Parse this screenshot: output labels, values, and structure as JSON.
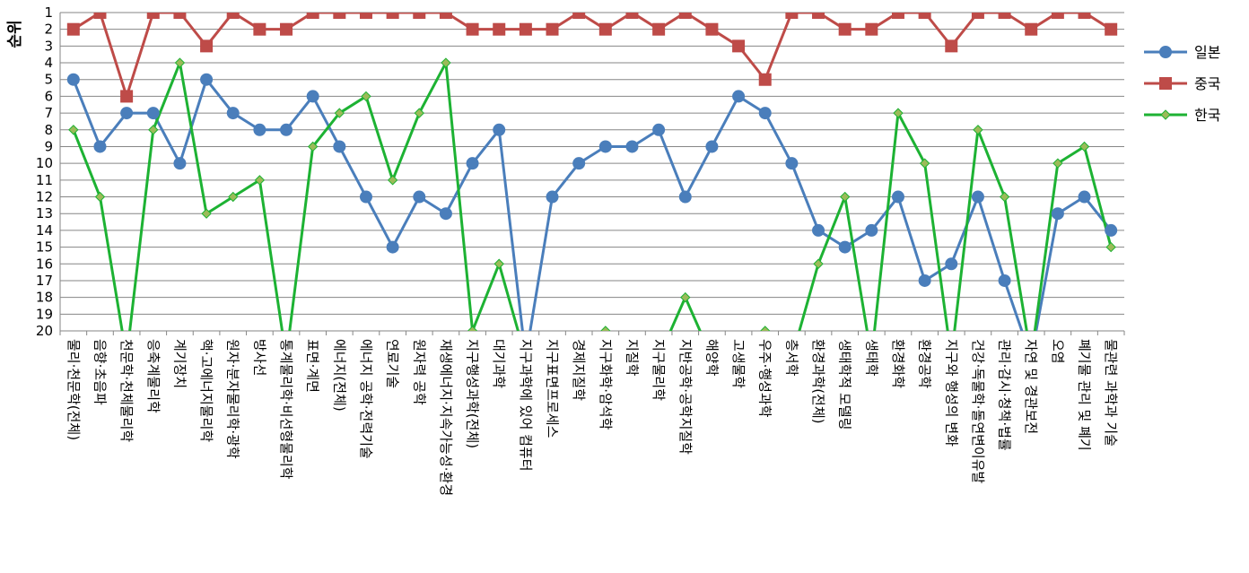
{
  "chart_data": {
    "type": "line",
    "ylabel": "순위",
    "ylim": [
      1,
      20
    ],
    "y_inverted": true,
    "grid": true,
    "legend_position": "right",
    "categories": [
      "물리·천문학(전체)",
      "음향·초음파",
      "천문학·천체물리학",
      "응축계물리학",
      "계기장치",
      "핵·고에너지물리학",
      "원자·분자물리학·광학",
      "방사선",
      "통계물리학·비선형물리학",
      "표면·계면",
      "에너지(전체)",
      "에너지 공학·전력기술",
      "연료기술",
      "원자력 공학",
      "재생에너지·지속가능성·환경",
      "지구행성과학(전체)",
      "대기과학",
      "지구과학에 있어 컴퓨터",
      "지구표면프로세스",
      "경제지질학",
      "지구화학·암석학",
      "지질학",
      "지구물리학",
      "지반공학·공학지질학",
      "해양학",
      "고생물학",
      "우주·행성과학",
      "층서학",
      "환경과학(전체)",
      "생태학적 모델링",
      "생태학",
      "환경화학",
      "환경공학",
      "지구와 행성의 변화",
      "건강·독물학·돌연변이유발",
      "관리·감시·청책·법률",
      "자연 및 경관보전",
      "오염",
      "폐기물 관리 및 폐기",
      "물관련 과학과 기술"
    ],
    "series": [
      {
        "name": "일본",
        "color": "#4A7EBB",
        "marker": "circle",
        "values": [
          5,
          9,
          7,
          7,
          10,
          5,
          7,
          8,
          8,
          6,
          9,
          12,
          15,
          12,
          13,
          10,
          8,
          null,
          12,
          10,
          9,
          9,
          8,
          12,
          9,
          6,
          7,
          10,
          14,
          15,
          14,
          12,
          17,
          16,
          12,
          17,
          null,
          13,
          12,
          14
        ]
      },
      {
        "name": "중국",
        "color": "#BE4B48",
        "marker": "square",
        "values": [
          2,
          1,
          6,
          1,
          1,
          3,
          1,
          2,
          2,
          1,
          1,
          1,
          1,
          1,
          1,
          2,
          2,
          2,
          2,
          1,
          2,
          1,
          2,
          1,
          2,
          3,
          5,
          1,
          1,
          2,
          2,
          1,
          1,
          3,
          1,
          1,
          2,
          1,
          1,
          2
        ]
      },
      {
        "name": "한국",
        "color": "#1DB233",
        "marker": "diamond",
        "values": [
          8,
          12,
          null,
          8,
          4,
          13,
          12,
          11,
          null,
          9,
          7,
          6,
          11,
          7,
          4,
          20,
          16,
          null,
          null,
          null,
          20,
          null,
          null,
          18,
          null,
          null,
          20,
          null,
          16,
          12,
          null,
          7,
          10,
          null,
          8,
          12,
          null,
          10,
          9,
          15
        ]
      }
    ]
  }
}
